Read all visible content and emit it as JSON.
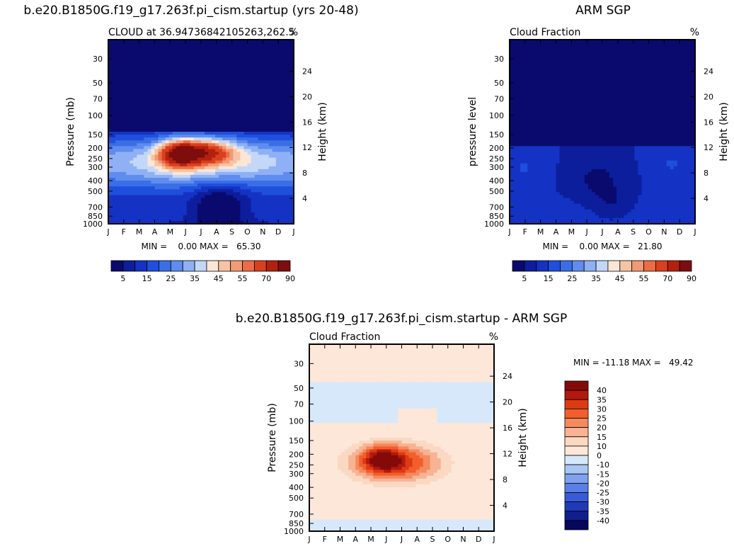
{
  "chart_data": [
    {
      "type": "heatmap",
      "title": "b.e20.B1850G.f19_g17.263f.pi_cism.startup (yrs 20-48)",
      "subtitle_left": "CLOUD at 36.94736842105263,262.5",
      "subtitle_right": "%",
      "ylabel": "Pressure (mb)",
      "ylabel_right": "Height (km)",
      "stats": "MIN =    0.00 MAX =   65.30",
      "x_ticks": [
        "J",
        "F",
        "M",
        "A",
        "M",
        "J",
        "J",
        "A",
        "S",
        "O",
        "N",
        "D",
        "J"
      ],
      "y_ticks": [
        "30",
        "50",
        "70",
        "100",
        "150",
        "200",
        "250",
        "300",
        "400",
        "500",
        "700",
        "850",
        "1000"
      ],
      "y_right_ticks": [
        "24",
        "20",
        "16",
        "12",
        "8",
        "4"
      ],
      "colorbar_labels": [
        "5",
        "15",
        "25",
        "35",
        "45",
        "55",
        "70",
        "90"
      ],
      "min": 0.0,
      "max": 65.3
    },
    {
      "type": "heatmap",
      "title": "ARM SGP",
      "subtitle_left": "Cloud Fraction",
      "subtitle_right": "%",
      "ylabel": "pressure level",
      "ylabel_right": "Height (km)",
      "stats": "MIN =    0.00 MAX =   21.80",
      "x_ticks": [
        "J",
        "F",
        "M",
        "A",
        "M",
        "J",
        "J",
        "A",
        "S",
        "O",
        "N",
        "D",
        "J"
      ],
      "y_ticks": [
        "30",
        "50",
        "70",
        "100",
        "150",
        "200",
        "250",
        "300",
        "400",
        "500",
        "700",
        "850",
        "1000"
      ],
      "y_right_ticks": [
        "24",
        "20",
        "16",
        "12",
        "8",
        "4"
      ],
      "colorbar_labels": [
        "5",
        "15",
        "25",
        "35",
        "45",
        "55",
        "70",
        "90"
      ],
      "min": 0.0,
      "max": 21.8
    },
    {
      "type": "heatmap",
      "title": "b.e20.B1850G.f19_g17.263f.pi_cism.startup - ARM SGP",
      "subtitle_left": "Cloud Fraction",
      "subtitle_right": "%",
      "ylabel": "Pressure (mb)",
      "ylabel_right": "Height (km)",
      "stats": "MIN = -11.18 MAX =   49.42",
      "x_ticks": [
        "J",
        "F",
        "M",
        "A",
        "M",
        "J",
        "J",
        "A",
        "S",
        "O",
        "N",
        "D",
        "J"
      ],
      "y_ticks": [
        "30",
        "50",
        "70",
        "100",
        "150",
        "200",
        "250",
        "300",
        "400",
        "500",
        "700",
        "850",
        "1000"
      ],
      "y_right_ticks": [
        "24",
        "20",
        "16",
        "12",
        "8",
        "4"
      ],
      "colorbar_labels": [
        "40",
        "35",
        "30",
        "25",
        "20",
        "15",
        "10",
        "0",
        "-10",
        "-15",
        "-20",
        "-25",
        "-30",
        "-35",
        "-40"
      ],
      "min": -11.18,
      "max": 49.42
    }
  ],
  "colors": {
    "seq": [
      "#0a0a6e",
      "#0c1e9c",
      "#1433c4",
      "#1f4fdd",
      "#3a6ee6",
      "#5f8cef",
      "#8fb0f4",
      "#c3d7f8",
      "#fbe6d6",
      "#f6c4a4",
      "#f29a73",
      "#ec6c45",
      "#d9401f",
      "#b5200e",
      "#7e0d0d"
    ],
    "div": [
      "#840a0a",
      "#b3190c",
      "#dd3a14",
      "#f25e2c",
      "#f48a5e",
      "#f7b393",
      "#fbd8c2",
      "#fde7d8",
      "#d8e8fb",
      "#aac6f4",
      "#7ea2ee",
      "#5a7fe6",
      "#3a5bd8",
      "#2239b8",
      "#0f1f8c",
      "#06085c"
    ]
  }
}
